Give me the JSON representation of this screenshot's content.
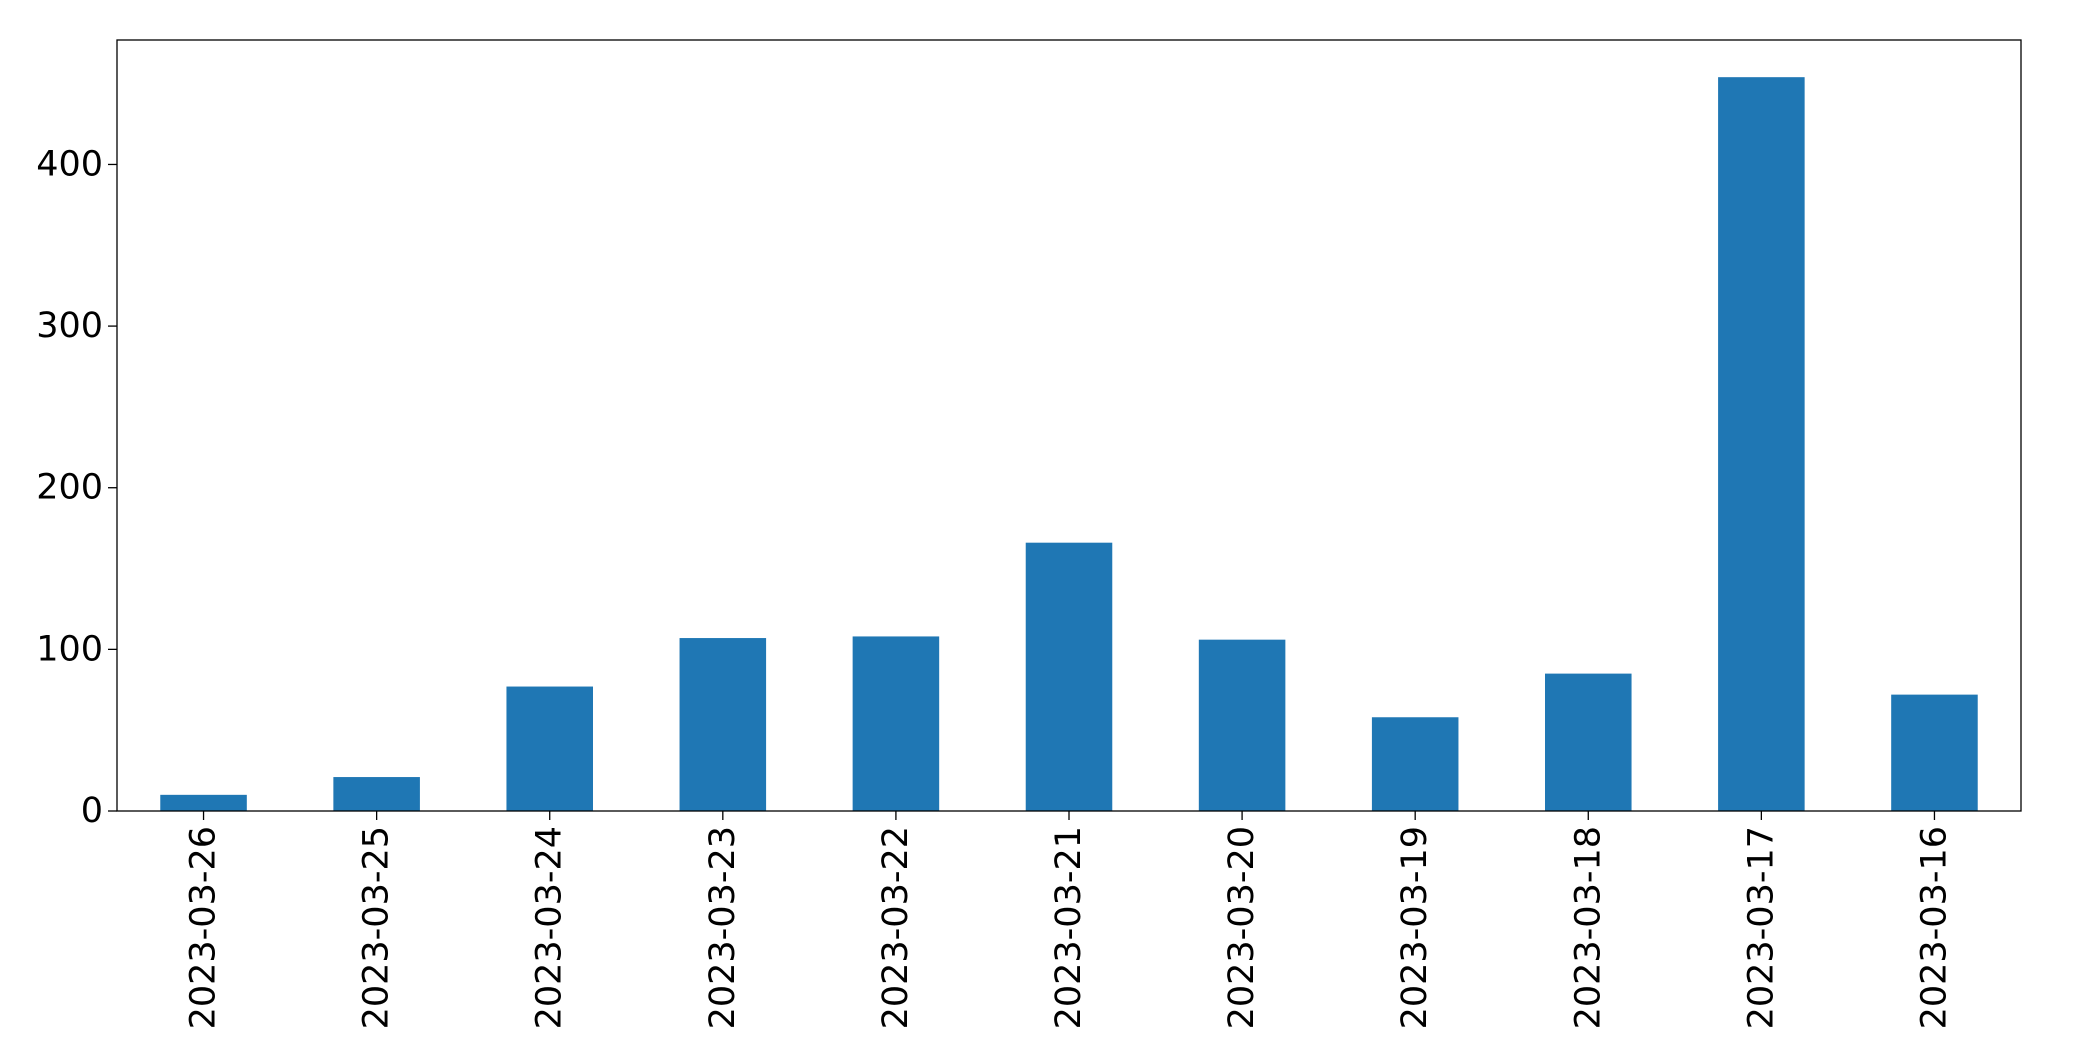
{
  "chart_data": {
    "type": "bar",
    "title": "",
    "xlabel": "",
    "ylabel": "",
    "categories": [
      "2023-03-26",
      "2023-03-25",
      "2023-03-24",
      "2023-03-23",
      "2023-03-22",
      "2023-03-21",
      "2023-03-20",
      "2023-03-19",
      "2023-03-18",
      "2023-03-17",
      "2023-03-16"
    ],
    "values": [
      10,
      21,
      77,
      107,
      108,
      166,
      106,
      58,
      85,
      454,
      72
    ],
    "ylim": [
      0,
      477
    ],
    "yticks": [
      0,
      100,
      200,
      300,
      400
    ],
    "grid": false,
    "legend": "none",
    "bar_color": "#1f77b4"
  }
}
